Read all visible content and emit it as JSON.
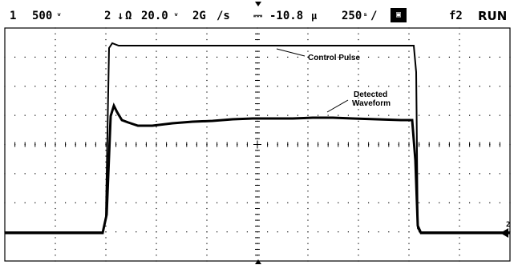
{
  "status": {
    "ch1_label": "1",
    "ch1_scale": "500",
    "ch1_scale_unit_icon": "millivolt-symbol-glyph",
    "ch2_label": "2",
    "ch2_coupling_icon": "down-arrow-impedance-symbol",
    "ch2_impedance": "Ω",
    "ch2_scale": "20.0",
    "ch2_scale_unit_icon": "millivolt-symbol-glyph",
    "sample_rate": "2G",
    "sample_rate_suffix": "/s",
    "trigger_icon": "trigger-edge-icon",
    "time_offset": "-10.8",
    "time_offset_unit_icon": "microsecond-symbol-glyph",
    "time_per_div": "250",
    "time_per_div_suffix": "/",
    "acq_mode_icon": "acquisition-mode-badge",
    "trigger_source": "f2",
    "run_state": "RUN"
  },
  "annotations": {
    "control_pulse": "Control Pulse",
    "detected_line1": "Detected",
    "detected_line2": "Waveform"
  },
  "markers": {
    "ch2_ground_label": "2"
  },
  "colors": {
    "background": "#ffffff",
    "trace": "#000000",
    "graticule": "#000000"
  }
}
